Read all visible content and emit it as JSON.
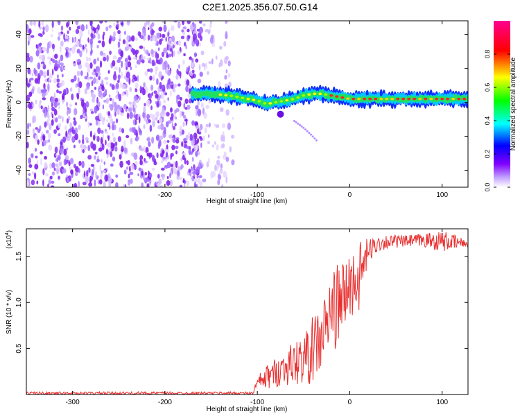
{
  "title": "C2E1.2025.356.07.50.G14",
  "chart_data": [
    {
      "type": "heatmap",
      "xlabel": "Height of straight line (km)",
      "ylabel": "Frequency (Hz)",
      "xlim": [
        -350,
        128
      ],
      "ylim": [
        -50,
        48
      ],
      "xticks": [
        -300,
        -200,
        -100,
        0,
        100
      ],
      "yticks": [
        -40,
        -20,
        0,
        20,
        40
      ],
      "colorbar": {
        "label": "Normalized spectral amplitude",
        "range": [
          0,
          1
        ],
        "ticks": [
          "0.0",
          "0.2",
          "0.4",
          "0.6",
          "0.8"
        ],
        "colors": [
          "#ffffff",
          "#8000ff",
          "#0000ff",
          "#00ffff",
          "#00ff00",
          "#ffff00",
          "#ff0000",
          "#ff0090"
        ]
      },
      "ridge": {
        "x": [
          -170,
          -150,
          -130,
          -110,
          -100,
          -90,
          -80,
          -70,
          -60,
          -50,
          -40,
          -30,
          -20,
          -10,
          0,
          20,
          40,
          60,
          80,
          100,
          128
        ],
        "y": [
          5,
          5,
          4,
          2,
          1,
          -1,
          0,
          1,
          2,
          4,
          5,
          5,
          4,
          3,
          2,
          2,
          2,
          2,
          2,
          2,
          2
        ]
      },
      "branch": {
        "x": [
          -60,
          -50,
          -42,
          -35
        ],
        "y": [
          -11,
          -15,
          -19,
          -23
        ]
      }
    },
    {
      "type": "line",
      "xlabel": "Height of straight line (km)",
      "ylabel": "SNR (10 * v/v)",
      "yscale_label": "(x10",
      "yscale_exp": "4",
      "xlim": [
        -350,
        128
      ],
      "ylim": [
        0,
        1.8
      ],
      "xticks": [
        -300,
        -200,
        -100,
        0,
        100
      ],
      "yticks": [
        "0.5",
        "1.0",
        "1.5"
      ],
      "series": [
        {
          "color": "#e83030",
          "envelope": {
            "x": [
              -350,
              -105,
              -100,
              -90,
              -80,
              -70,
              -60,
              -50,
              -40,
              -30,
              -20,
              -10,
              0,
              10,
              20,
              30,
              40,
              60,
              80,
              100,
              128
            ],
            "low": [
              0.0,
              0.0,
              0.04,
              0.05,
              0.08,
              0.1,
              0.1,
              0.12,
              0.1,
              0.25,
              0.45,
              0.55,
              0.8,
              0.9,
              1.4,
              1.55,
              1.58,
              1.6,
              1.6,
              1.55,
              1.6
            ],
            "high": [
              0.03,
              0.03,
              0.2,
              0.32,
              0.4,
              0.5,
              0.58,
              0.65,
              0.85,
              1.0,
              1.35,
              1.45,
              1.55,
              1.65,
              1.7,
              1.72,
              1.74,
              1.73,
              1.75,
              1.78,
              1.68
            ]
          }
        }
      ]
    }
  ]
}
